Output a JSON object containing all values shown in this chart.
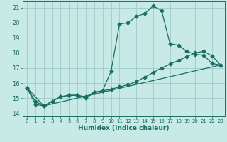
{
  "xlabel": "Humidex (Indice chaleur)",
  "bg_color": "#c8eae6",
  "grid_color": "#a0cccc",
  "line_color": "#1a6e64",
  "xlim": [
    -0.5,
    23.5
  ],
  "ylim": [
    13.8,
    21.4
  ],
  "yticks": [
    14,
    15,
    16,
    17,
    18,
    19,
    20,
    21
  ],
  "xticks": [
    0,
    1,
    2,
    3,
    4,
    5,
    6,
    7,
    8,
    9,
    10,
    11,
    12,
    13,
    14,
    15,
    16,
    17,
    18,
    19,
    20,
    21,
    22,
    23
  ],
  "line1_x": [
    0,
    1,
    2,
    3,
    4,
    5,
    6,
    7,
    8,
    9,
    10,
    11,
    12,
    13,
    14,
    15,
    16,
    17,
    18,
    19,
    20,
    21,
    22,
    23
  ],
  "line1_y": [
    15.7,
    14.6,
    14.5,
    14.8,
    15.1,
    15.2,
    15.2,
    15.0,
    15.4,
    15.5,
    16.8,
    19.9,
    20.0,
    20.4,
    20.6,
    21.1,
    20.8,
    18.6,
    18.5,
    18.1,
    17.9,
    17.85,
    17.3,
    17.2
  ],
  "line2_x": [
    0,
    1,
    2,
    3,
    4,
    5,
    6,
    7,
    8,
    9,
    10,
    11,
    12,
    13,
    14,
    15,
    16,
    17,
    18,
    19,
    20,
    21,
    22,
    23
  ],
  "line2_y": [
    15.7,
    14.8,
    14.5,
    14.8,
    15.1,
    15.2,
    15.2,
    15.1,
    15.4,
    15.5,
    15.6,
    15.75,
    15.9,
    16.1,
    16.4,
    16.7,
    17.0,
    17.25,
    17.5,
    17.75,
    18.0,
    18.1,
    17.8,
    17.2
  ],
  "line3_x": [
    0,
    2,
    23
  ],
  "line3_y": [
    15.7,
    14.5,
    17.2
  ]
}
